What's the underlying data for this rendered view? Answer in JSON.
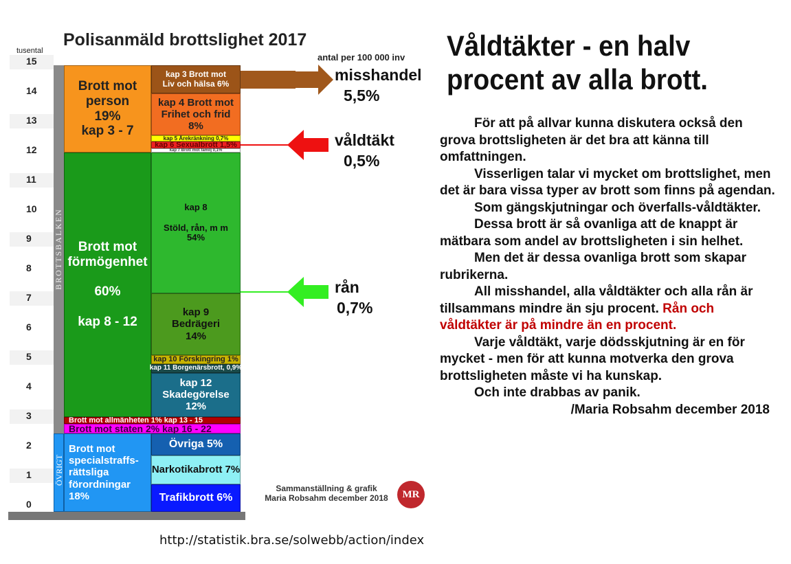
{
  "chart_data": {
    "type": "table",
    "title": "Polisanmäld brottslighet 2017",
    "ylabel": "tusental",
    "subtitle": "antal per 100 000 inv",
    "ylim": [
      0,
      15
    ],
    "yticks": [
      "0",
      "1",
      "2",
      "3",
      "4",
      "5",
      "6",
      "7",
      "8",
      "9",
      "10",
      "11",
      "12",
      "13",
      "14",
      "15"
    ],
    "side_labels": {
      "brottsbalken": "BROTTSBALKEN",
      "ovrigt": "ÖVRIGT"
    },
    "left_blocks": [
      {
        "lines": [
          "Brott mot",
          "person",
          "19%",
          "kap 3 - 7"
        ],
        "from": 11.93,
        "to": 14.88,
        "color": "#f7941d",
        "text": "#222"
      },
      {
        "lines": [
          "Brott mot",
          "förmögenhet",
          "",
          "60%",
          "",
          "kap 8 - 12"
        ],
        "from": 2.98,
        "to": 11.93,
        "color": "#1a9a1a",
        "text": "#fff"
      },
      {
        "lines": [
          "Brott mot specialstraffs-",
          "rättsliga förordningar 18%"
        ],
        "from": -0.23,
        "to": 2.42,
        "color": "#2196f3",
        "text": "#fff"
      }
    ],
    "wide_blocks": [
      {
        "lines": [
          "Brott mot allmänheten 1% kap 13 - 15"
        ],
        "from": 2.74,
        "to": 2.98,
        "color": "#b30000",
        "text": "#fff"
      },
      {
        "lines": [
          "Brott mot staten 2% kap 16 - 22"
        ],
        "from": 2.42,
        "to": 2.74,
        "color": "#ff00ff",
        "text": "#3a0040"
      }
    ],
    "right_blocks": [
      {
        "lines": [
          "kap 3 Brott mot",
          "Liv och hälsa 6%"
        ],
        "from": 13.93,
        "to": 14.88,
        "color": "#9c5418",
        "text": "#fff"
      },
      {
        "lines": [
          "kap 4 Brott mot",
          "Frihet och frid",
          "8%"
        ],
        "from": 12.51,
        "to": 13.93,
        "color": "#f26d21",
        "text": "#222"
      },
      {
        "lines": [
          "kap 5 Ärekränkning 0,7%"
        ],
        "from": 12.3,
        "to": 12.51,
        "color": "#ffff00",
        "text": "#222"
      },
      {
        "lines": [
          "kap 6 Sexualbrott 1,5%"
        ],
        "from": 12.07,
        "to": 12.3,
        "color": "#ee2222",
        "text": "#600"
      },
      {
        "lines": [
          "kap 7 Brott mot familj 0,1%"
        ],
        "from": 11.93,
        "to": 12.07,
        "color": "#ffffff",
        "text": "#444"
      },
      {
        "lines": [
          "kap 8",
          "",
          "Stöld, rån, m m",
          "54%"
        ],
        "from": 7.16,
        "to": 11.93,
        "color": "#2eb82e",
        "text": "#111"
      },
      {
        "lines": [
          "kap 9",
          "Bedrägeri",
          "14%"
        ],
        "from": 5.07,
        "to": 7.16,
        "color": "#4c9a1e",
        "text": "#111"
      },
      {
        "lines": [
          "kap 10 Förskingring 1%"
        ],
        "from": 4.77,
        "to": 5.07,
        "color": "#c8b400",
        "text": "#222"
      },
      {
        "lines": [
          "kap 11 Borgenärsbrott, 0,9%"
        ],
        "from": 4.47,
        "to": 4.77,
        "color": "#1a4a4a",
        "text": "#fff"
      },
      {
        "lines": [
          "kap 12",
          "Skadegörelse",
          "12%"
        ],
        "from": 2.98,
        "to": 4.47,
        "color": "#1b6e8a",
        "text": "#fff"
      },
      {
        "lines": [
          "Övriga 5%"
        ],
        "from": 1.67,
        "to": 2.42,
        "color": "#1560b0",
        "text": "#fff"
      },
      {
        "lines": [
          "Narkotikabrott 7%"
        ],
        "from": 0.7,
        "to": 1.67,
        "color": "#8ef0f5",
        "text": "#111"
      },
      {
        "lines": [
          "Trafikbrott 6%"
        ],
        "from": -0.23,
        "to": 0.7,
        "color": "#0a1aff",
        "text": "#fff"
      }
    ],
    "annotations": [
      {
        "label": "misshandel",
        "value": "5,5%",
        "at": 14.4,
        "color": "#a0581c"
      },
      {
        "label": "våldtäkt",
        "value": "0,5%",
        "at": 12.18,
        "color": "#ee1111"
      },
      {
        "label": "rån",
        "value": "0,7%",
        "at": 7.2,
        "color": "#33ee22"
      }
    ],
    "credit": [
      "Sammanställning & grafik",
      "Maria Robsahm december 2018"
    ],
    "logo": "MR"
  },
  "article": {
    "heading": [
      "Våldtäkter - en halv",
      "procent av alla brott."
    ],
    "paragraphs": [
      "För att på allvar kunna diskutera också den grova brottsligheten är det bra att känna till omfattningen.",
      "Visserligen talar vi mycket om brottslighet, men det är bara vissa typer av brott som finns på agendan.",
      "Som gängskjutningar och överfalls-våldtäkter.",
      "Dessa brott är så ovanliga att de knappt är mätbara som andel av brottsligheten i sin helhet.",
      "Men det är dessa ovanliga brott som skapar rubrikerna.",
      "All misshandel, alla våldtäkter och alla rån är tillsammans mindre än sju procent.",
      "Varje våldtäkt, varje dödsskjutning är en för mycket - men för att kunna motverka den grova brottsligheten måste vi ha kunskap.",
      "Och inte drabbas av panik."
    ],
    "highlight": "Rån och våldtäkter är på mindre än en procent.",
    "highlight_color": "#c00000",
    "signature": "/Maria Robsahm december 2018"
  },
  "source_url": "http://statistik.bra.se/solwebb/action/index"
}
